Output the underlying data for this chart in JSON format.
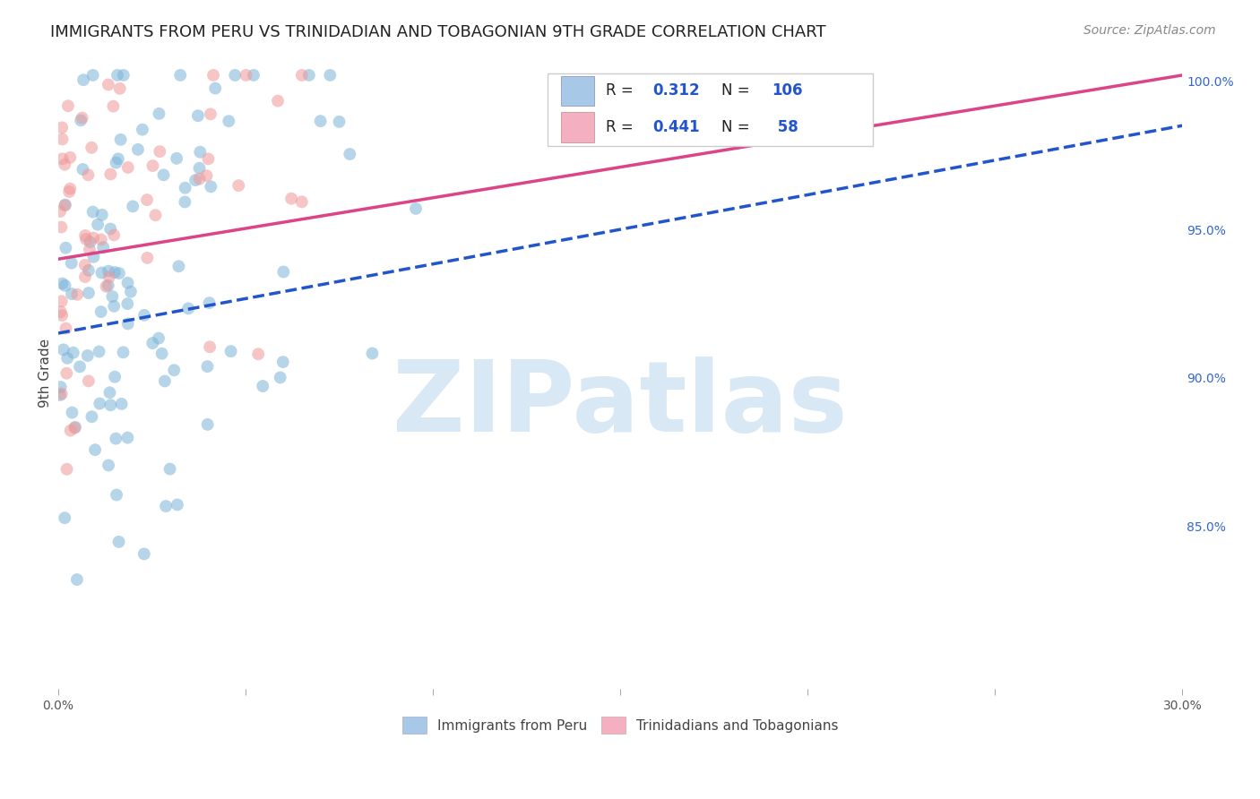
{
  "title": "IMMIGRANTS FROM PERU VS TRINIDADIAN AND TOBAGONIAN 9TH GRADE CORRELATION CHART",
  "source": "Source: ZipAtlas.com",
  "ylabel": "9th Grade",
  "ylabel_right_ticks": [
    "100.0%",
    "95.0%",
    "90.0%",
    "85.0%"
  ],
  "ylabel_right_vals": [
    1.0,
    0.95,
    0.9,
    0.85
  ],
  "xmin": 0.0,
  "xmax": 0.3,
  "ymin": 0.795,
  "ymax": 1.008,
  "watermark": "ZIPatlas",
  "blue_R": 0.312,
  "blue_N": 106,
  "pink_R": 0.441,
  "pink_N": 58,
  "blue_line_x": [
    0.0,
    0.3
  ],
  "blue_line_y": [
    0.915,
    0.985
  ],
  "pink_line_x": [
    0.0,
    0.3
  ],
  "pink_line_y": [
    0.94,
    1.002
  ],
  "scatter_size": 100,
  "scatter_alpha": 0.55,
  "line_width": 2.5,
  "blue_color": "#7ab4d8",
  "pink_color": "#f09898",
  "blue_line_color": "#2255cc",
  "pink_line_color": "#dd4488",
  "watermark_color": "#d8e8f4",
  "watermark_fontsize": 80,
  "title_fontsize": 13,
  "source_fontsize": 10,
  "blue_legend_color": "#a8c8e8",
  "pink_legend_color": "#f4b0c0",
  "legend_text_color": "#2255cc",
  "legend_label_color": "#333333"
}
